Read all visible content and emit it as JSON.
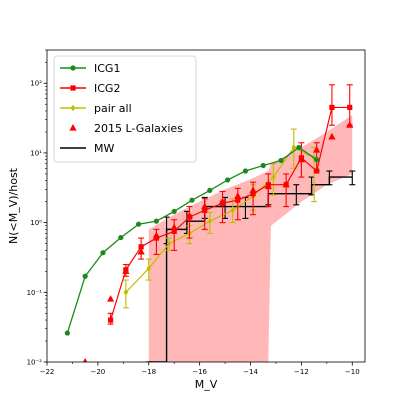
{
  "chart_data": {
    "type": "line",
    "xlabel": "M_V",
    "ylabel": "N(<M_V)/host",
    "xlim": [
      -22,
      -9.5
    ],
    "ylim": [
      0.01,
      300
    ],
    "yscale": "log",
    "xticks": [
      -22,
      -20,
      -18,
      -16,
      -14,
      -12,
      -10
    ],
    "xtick_labels": [
      "−22",
      "−20",
      "−18",
      "−16",
      "−14",
      "−12",
      "−10"
    ],
    "yticks": [
      0.01,
      0.1,
      1,
      10,
      100
    ],
    "ytick_labels": [
      "10⁻²",
      "10⁻¹",
      "10⁰",
      "10¹",
      "10²"
    ],
    "legend_position": "top-left",
    "colors": {
      "icg1": "#1a8a1a",
      "icg2": "#ff0000",
      "pair_all": "#bfbf00",
      "lgal": "#ff0000",
      "mw": "#000000",
      "band": "#ffaaaa"
    },
    "series": [
      {
        "key": "icg1",
        "name": "ICG1",
        "marker": "circle",
        "x": [
          -21.2,
          -20.5,
          -19.8,
          -19.1,
          -18.4,
          -17.7,
          -17.0,
          -16.3,
          -15.6,
          -14.9,
          -14.2,
          -13.5,
          -12.8,
          -12.1,
          -11.4
        ],
        "y": [
          0.026,
          0.17,
          0.37,
          0.61,
          0.95,
          1.05,
          1.45,
          2.1,
          2.9,
          4.1,
          5.5,
          6.6,
          7.8,
          12.0,
          8.0
        ]
      },
      {
        "key": "icg2",
        "name": "ICG2",
        "marker": "square",
        "x": [
          -19.5,
          -18.9,
          -18.3,
          -17.7,
          -17.0,
          -16.4,
          -15.8,
          -15.1,
          -14.5,
          -13.9,
          -13.3,
          -12.6,
          -12.0,
          -11.4,
          -10.8,
          -10.1
        ],
        "y": [
          0.04,
          0.21,
          0.45,
          0.6,
          0.75,
          1.2,
          1.5,
          1.9,
          2.1,
          2.6,
          3.5,
          3.5,
          8.5,
          5.5,
          45,
          45
        ],
        "err_lo": [
          0.035,
          0.17,
          0.3,
          0.35,
          0.4,
          0.6,
          0.8,
          1.0,
          1.1,
          1.3,
          1.7,
          1.7,
          4.5,
          5.49,
          25,
          25
        ],
        "err_hi": [
          0.05,
          0.25,
          0.6,
          0.8,
          1.1,
          1.7,
          2.2,
          2.8,
          3.1,
          3.8,
          5.0,
          5.0,
          14,
          14,
          95,
          95
        ]
      },
      {
        "key": "pair_all",
        "name": "pair all",
        "marker": "diamond",
        "x": [
          -18.9,
          -18.0,
          -17.2,
          -16.4,
          -15.6,
          -14.7,
          -13.9,
          -13.1,
          -12.3,
          -11.5
        ],
        "y": [
          0.1,
          0.22,
          0.5,
          0.7,
          1.05,
          1.5,
          2.4,
          4.5,
          12,
          8.5
        ],
        "err_lo": [
          0.06,
          0.15,
          0.4,
          0.5,
          0.7,
          1.0,
          1.5,
          2.5,
          6,
          2.0
        ],
        "err_hi": [
          0.15,
          0.3,
          0.6,
          0.9,
          1.4,
          2.2,
          3.5,
          7,
          22,
          12
        ]
      },
      {
        "key": "lgal",
        "name": "2015 L-Galaxies",
        "marker": "triangle",
        "x": [
          -20.5,
          -19.5,
          -18.9,
          -18.3,
          -17.7,
          -17.0,
          -16.4,
          -15.8,
          -15.1,
          -14.5,
          -13.9,
          -13.3,
          -12.6,
          -12.0,
          -11.4,
          -10.8,
          -10.1
        ],
        "y": [
          0.01,
          0.08,
          0.2,
          0.38,
          0.65,
          0.85,
          1.25,
          1.7,
          2.0,
          2.4,
          2.9,
          3.3,
          3.5,
          8.0,
          11,
          17,
          25
        ]
      },
      {
        "key": "mw",
        "name": "MW",
        "marker": "step",
        "x": [
          -18.0,
          -17.3,
          -16.5,
          -15.8,
          -15.0,
          -14.2,
          -13.3,
          -12.2,
          -11.6,
          -10.9,
          -10.0
        ],
        "y": [
          0.01,
          0.8,
          1.05,
          1.7,
          1.7,
          1.7,
          2.6,
          2.6,
          3.5,
          4.5,
          4.5
        ],
        "err_lo": [
          0.01,
          0.5,
          0.7,
          1.15,
          1.15,
          1.15,
          1.8,
          1.8,
          2.5,
          3.5,
          3.5
        ],
        "err_hi": [
          0.01,
          1.2,
          1.45,
          2.3,
          2.3,
          2.3,
          3.5,
          3.5,
          4.5,
          5.5,
          5.5
        ]
      }
    ],
    "band": {
      "name": "ICG2 band",
      "x": [
        -18.0,
        -17.0,
        -16.0,
        -15.0,
        -14.0,
        -13.3,
        -13.2,
        -12.0,
        -11.0,
        -10.0
      ],
      "y_lo": [
        0.01,
        0.01,
        0.01,
        0.01,
        0.01,
        0.01,
        0.9,
        2.0,
        3.5,
        5.0
      ],
      "y_hi": [
        0.8,
        1.3,
        2.0,
        3.0,
        4.2,
        5.5,
        7,
        12,
        20,
        35
      ]
    }
  }
}
